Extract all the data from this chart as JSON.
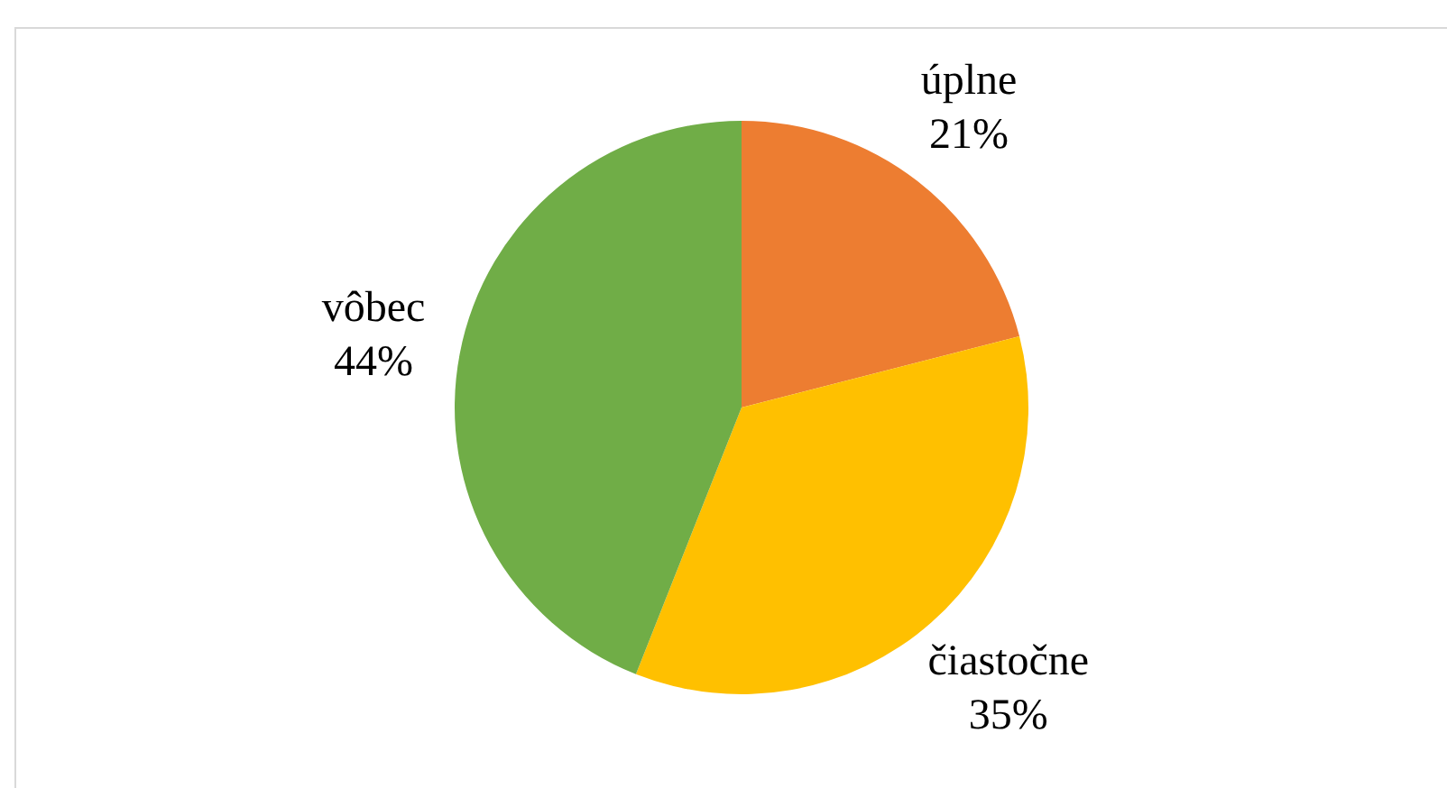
{
  "chart_data": {
    "type": "pie",
    "categories": [
      "úplne",
      "čiastočne",
      "vôbec"
    ],
    "values": [
      21,
      35,
      44
    ],
    "colors": [
      "#ed7d31",
      "#ffc000",
      "#70ad47"
    ],
    "value_labels": [
      "21%",
      "35%",
      "44%"
    ],
    "legend": false
  }
}
